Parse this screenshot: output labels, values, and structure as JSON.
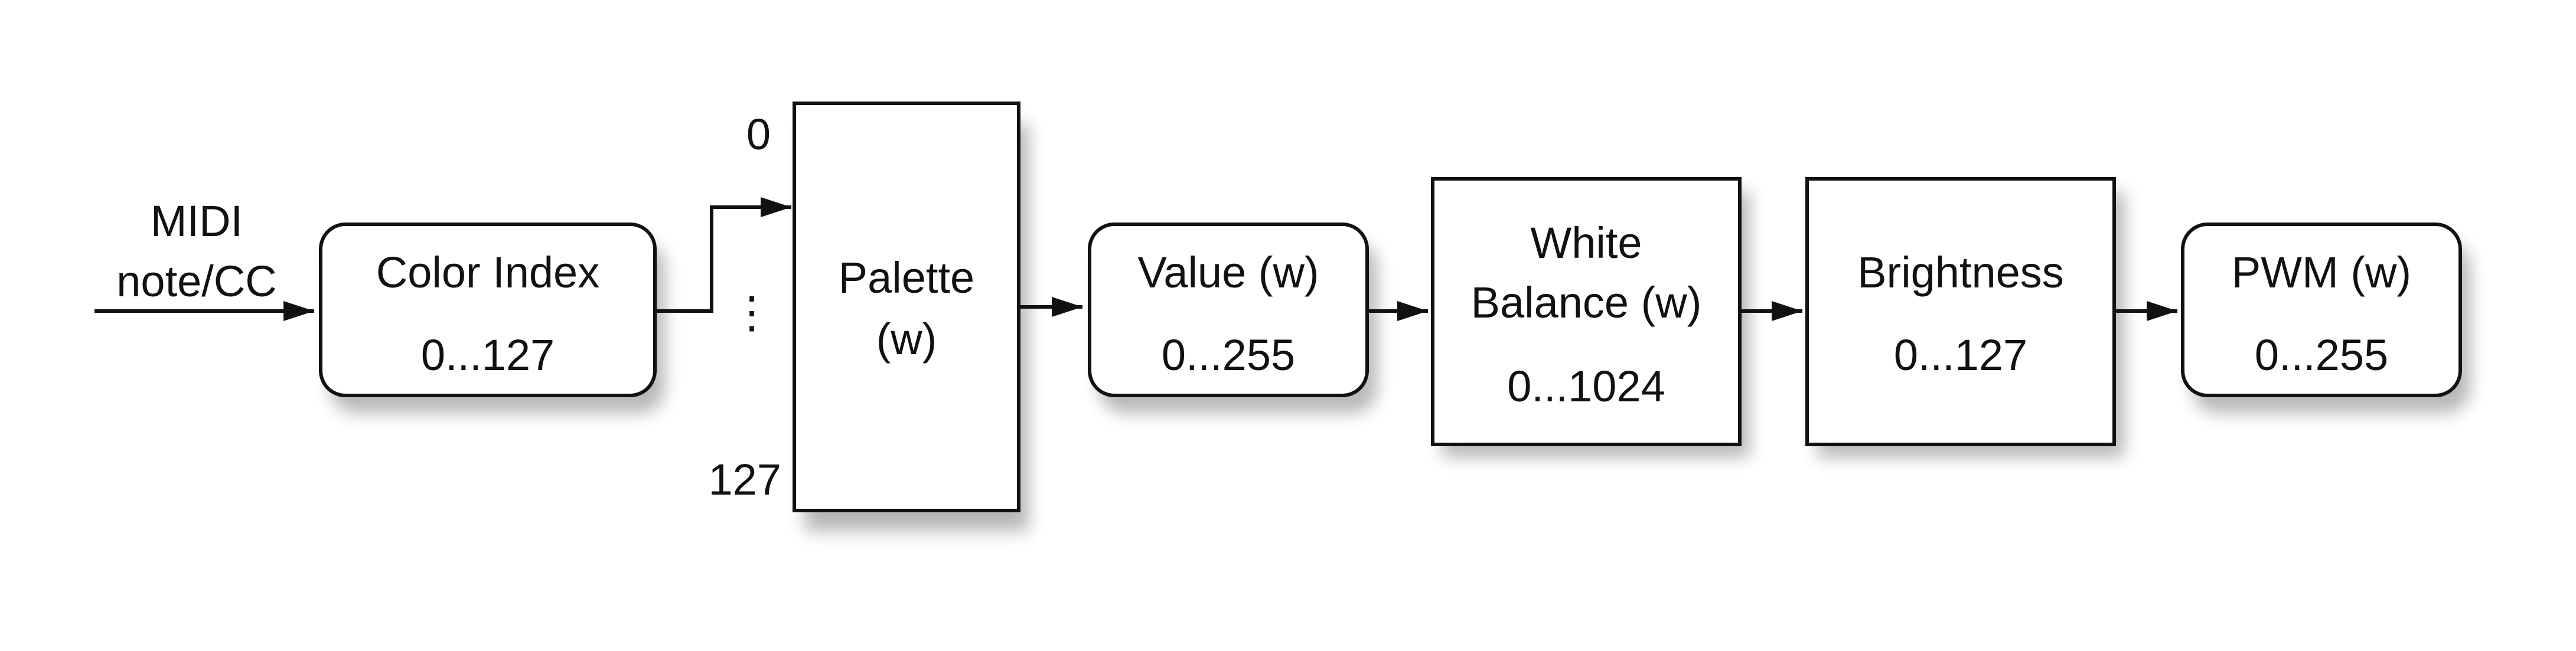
{
  "input": {
    "line1": "MIDI",
    "line2": "note/CC"
  },
  "nodes": {
    "color_index": {
      "title": "Color Index",
      "range": "0...127"
    },
    "palette": {
      "title_line1": "Palette",
      "title_line2": "(w)",
      "index_top": "0",
      "index_mid": "⋮",
      "index_bottom": "127"
    },
    "value": {
      "title": "Value (w)",
      "range": "0...255"
    },
    "white_balance": {
      "title_line1": "White",
      "title_line2": "Balance (w)",
      "range": "0...1024"
    },
    "brightness": {
      "title": "Brightness",
      "range": "0...127"
    },
    "pwm": {
      "title": "PWM (w)",
      "range": "0...255"
    }
  },
  "colors": {
    "stroke": "#111111",
    "fill": "#ffffff",
    "shadow": "#000000"
  }
}
